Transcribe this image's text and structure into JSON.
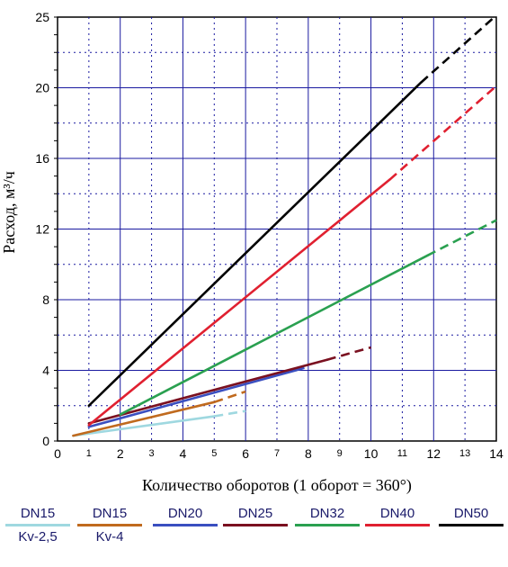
{
  "chart_data": {
    "type": "line",
    "title": "",
    "xlabel": "Количество оборотов (1 оборот = 360°)",
    "ylabel": "Расход, м³/ч",
    "xlim": [
      0,
      14
    ],
    "ylim": [
      0,
      24
    ],
    "x_ticks_major": [
      "0",
      "2",
      "4",
      "6",
      "8",
      "10",
      "12",
      "14"
    ],
    "x_ticks_minor": [
      "1",
      "3",
      "5",
      "7",
      "9",
      "11",
      "13"
    ],
    "y_ticks": [
      "0",
      "4",
      "8",
      "12",
      "16",
      "20",
      "25"
    ],
    "grid": true,
    "legend_position": "bottom",
    "series": [
      {
        "name": "DN15",
        "sub": "Kv-2,5",
        "color": "#9fd8e0",
        "solid": [
          [
            0.5,
            0.3
          ],
          [
            5.0,
            1.4
          ]
        ],
        "dashed": [
          [
            5.0,
            1.4
          ],
          [
            6.0,
            1.7
          ]
        ]
      },
      {
        "name": "DN15",
        "sub": "Kv-4",
        "color": "#c06a1e",
        "solid": [
          [
            0.5,
            0.3
          ],
          [
            5.0,
            2.2
          ]
        ],
        "dashed": [
          [
            5.0,
            2.2
          ],
          [
            6.0,
            2.8
          ]
        ]
      },
      {
        "name": "DN20",
        "sub": "",
        "color": "#3a4fc0",
        "solid": [
          [
            1.0,
            0.8
          ],
          [
            7.6,
            4.0
          ]
        ],
        "dashed": [
          [
            7.6,
            4.0
          ],
          [
            8.0,
            4.2
          ]
        ]
      },
      {
        "name": "DN25",
        "sub": "",
        "color": "#7a1020",
        "solid": [
          [
            1.0,
            1.0
          ],
          [
            8.6,
            4.6
          ]
        ],
        "dashed": [
          [
            8.6,
            4.6
          ],
          [
            10.0,
            5.3
          ]
        ]
      },
      {
        "name": "DN32",
        "sub": "",
        "color": "#2aa050",
        "solid": [
          [
            2.0,
            1.5
          ],
          [
            11.8,
            10.5
          ]
        ],
        "dashed": [
          [
            11.8,
            10.5
          ],
          [
            14.0,
            12.5
          ]
        ]
      },
      {
        "name": "DN40",
        "sub": "",
        "color": "#e02030",
        "solid": [
          [
            1.0,
            0.9
          ],
          [
            10.6,
            14.8
          ]
        ],
        "dashed": [
          [
            10.6,
            14.8
          ],
          [
            14.0,
            20.1
          ]
        ]
      },
      {
        "name": "DN50",
        "sub": "",
        "color": "#000000",
        "solid": [
          [
            1.0,
            2.0
          ],
          [
            11.6,
            20.3
          ]
        ],
        "dashed": [
          [
            11.6,
            20.3
          ],
          [
            14.0,
            24.1
          ]
        ]
      }
    ]
  }
}
